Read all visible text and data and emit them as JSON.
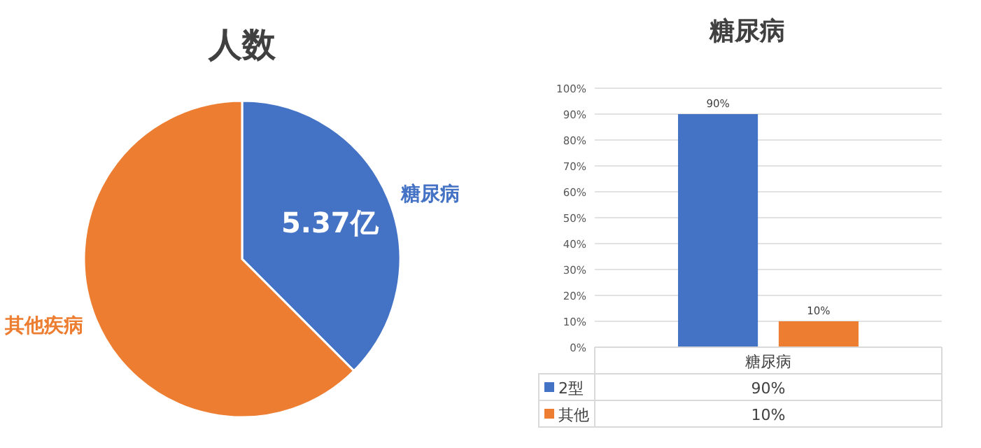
{
  "chart_data": [
    {
      "type": "pie",
      "title": "人数",
      "categories": [
        "糖尿病",
        "其他疾病"
      ],
      "values": [
        5.37,
        8.95
      ],
      "colors": [
        "#4472c4",
        "#ed7d31"
      ],
      "value_labels": [
        "5.37亿",
        null
      ]
    },
    {
      "type": "bar",
      "title": "糖尿病",
      "categories": [
        "糖尿病"
      ],
      "series": [
        {
          "name": "2型",
          "color": "#4472c4",
          "values": [
            90
          ],
          "value_labels": [
            "90%"
          ]
        },
        {
          "name": "其他",
          "color": "#ed7d31",
          "values": [
            10
          ],
          "value_labels": [
            "10%"
          ]
        }
      ],
      "ylim": [
        0,
        100
      ],
      "yticks": [
        {
          "value": 0,
          "label": "0%"
        },
        {
          "value": 10,
          "label": "10%"
        },
        {
          "value": 20,
          "label": "20%"
        },
        {
          "value": 30,
          "label": "30%"
        },
        {
          "value": 40,
          "label": "40%"
        },
        {
          "value": 50,
          "label": "50%"
        },
        {
          "value": 60,
          "label": "60%"
        },
        {
          "value": 70,
          "label": "70%"
        },
        {
          "value": 80,
          "label": "80%"
        },
        {
          "value": 90,
          "label": "90%"
        },
        {
          "value": 100,
          "label": "100%"
        }
      ],
      "grid": "y",
      "legend": "bottom"
    }
  ]
}
